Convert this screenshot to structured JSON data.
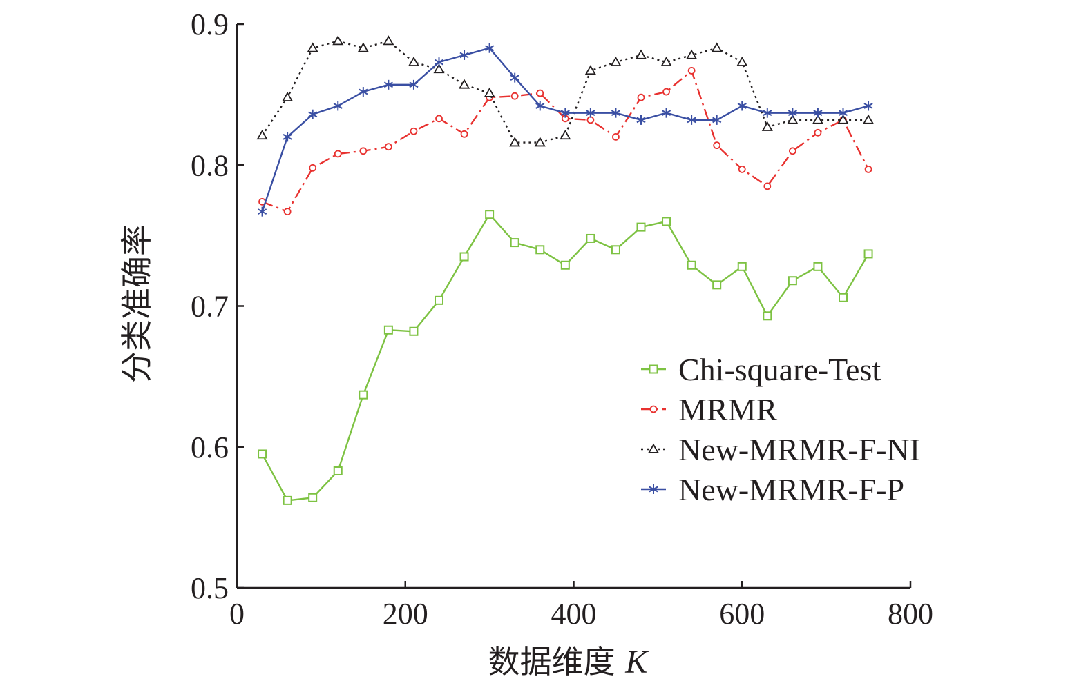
{
  "chart_data": {
    "type": "line",
    "title": "",
    "xlabel": "数据维度",
    "xlabel_var": "K",
    "ylabel": "分类准确率",
    "xlim": [
      0,
      800
    ],
    "ylim": [
      0.5,
      0.9
    ],
    "xticks": [
      0,
      200,
      400,
      600,
      800
    ],
    "xtick_labels": [
      "0",
      "200",
      "400",
      "600",
      "800"
    ],
    "yticks": [
      0.5,
      0.6,
      0.7,
      0.8,
      0.9
    ],
    "ytick_labels": [
      "0.5",
      "0.6",
      "0.7",
      "0.8",
      "0.9"
    ],
    "grid": false,
    "legend_position": "center-right",
    "x": [
      30,
      60,
      90,
      120,
      150,
      180,
      210,
      240,
      270,
      300,
      330,
      360,
      390,
      420,
      450,
      480,
      510,
      540,
      570,
      600,
      630,
      660,
      690,
      720,
      750
    ],
    "series": [
      {
        "name": "Chi-square-Test",
        "color": "#7dc242",
        "marker": "square",
        "dash": "solid",
        "values": [
          0.595,
          0.562,
          0.564,
          0.583,
          0.637,
          0.683,
          0.682,
          0.704,
          0.735,
          0.765,
          0.745,
          0.74,
          0.729,
          0.748,
          0.74,
          0.756,
          0.76,
          0.729,
          0.715,
          0.728,
          0.693,
          0.718,
          0.728,
          0.706,
          0.737
        ]
      },
      {
        "name": "MRMR",
        "color": "#e8312f",
        "marker": "circle",
        "dash": "dashdot",
        "values": [
          0.774,
          0.767,
          0.798,
          0.808,
          0.81,
          0.813,
          0.824,
          0.833,
          0.822,
          0.848,
          0.849,
          0.851,
          0.833,
          0.832,
          0.82,
          0.848,
          0.852,
          0.867,
          0.814,
          0.797,
          0.785,
          0.81,
          0.823,
          0.832,
          0.797
        ]
      },
      {
        "name": "New-MRMR-F-NI",
        "color": "#231f20",
        "marker": "triangle",
        "dash": "dotted",
        "values": [
          0.821,
          0.848,
          0.883,
          0.888,
          0.883,
          0.888,
          0.873,
          0.868,
          0.857,
          0.851,
          0.816,
          0.816,
          0.821,
          0.867,
          0.873,
          0.878,
          0.873,
          0.878,
          0.883,
          0.873,
          0.827,
          0.832,
          0.832,
          0.832,
          0.832
        ]
      },
      {
        "name": "New-MRMR-F-P",
        "color": "#3a4fa3",
        "marker": "asterisk",
        "dash": "solid",
        "values": [
          0.767,
          0.82,
          0.836,
          0.842,
          0.852,
          0.857,
          0.857,
          0.873,
          0.878,
          0.883,
          0.862,
          0.842,
          0.837,
          0.837,
          0.837,
          0.832,
          0.837,
          0.832,
          0.832,
          0.842,
          0.837,
          0.837,
          0.837,
          0.837,
          0.842
        ]
      }
    ]
  }
}
